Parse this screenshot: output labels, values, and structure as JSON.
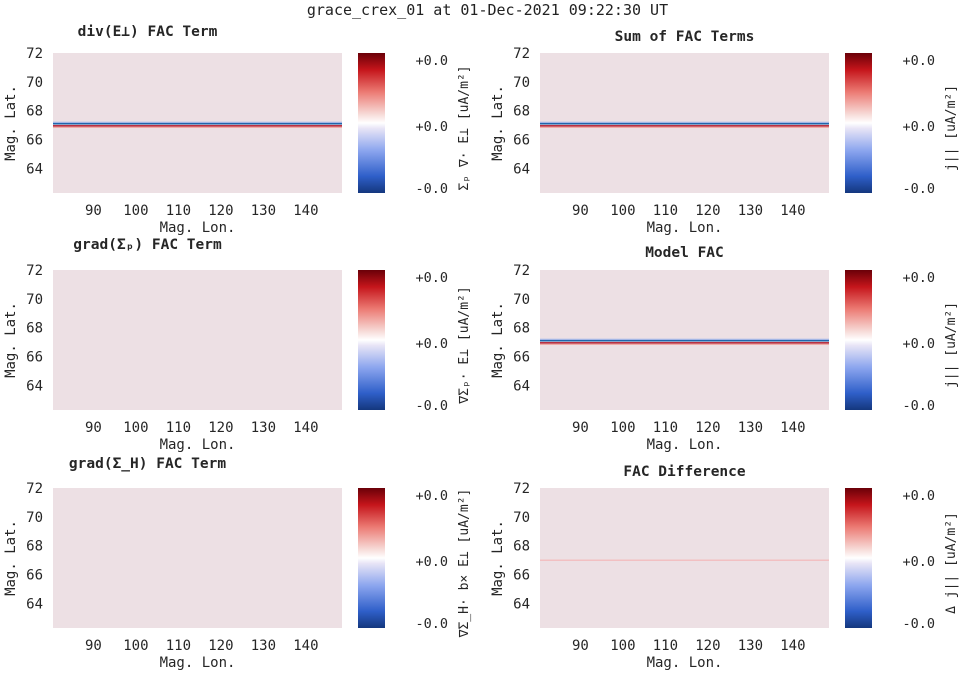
{
  "suptitle": "grace_crex_01 at 01-Dec-2021 09:22:30 UT",
  "colors": {
    "background": "#ede0e4",
    "line_red": "#b2182b",
    "line_blue": "#2166ac",
    "line_faint": "#f4b6b6"
  },
  "chart_data": [
    {
      "type": "heatmap",
      "title": "div(E⊥) FAC Term",
      "xlabel": "Mag. Lon.",
      "ylabel": "Mag. Lat.",
      "xticks": [
        90,
        100,
        110,
        120,
        130,
        140
      ],
      "yticks": [
        64,
        66,
        68,
        70,
        72
      ],
      "xlim": [
        80.5,
        148.5
      ],
      "ylim": [
        62.3,
        72
      ],
      "field": [
        {
          "lat": 67.1,
          "sign": "negative"
        },
        {
          "lat": 66.95,
          "sign": "positive"
        }
      ],
      "colorbar": {
        "label": "Σₚ ∇· E⊥ [uA/m²]",
        "ticks": [
          "+0.0",
          "+0.0",
          "-0.0"
        ]
      }
    },
    {
      "type": "heatmap",
      "title": "Sum of FAC Terms",
      "xlabel": "Mag. Lon.",
      "ylabel": "Mag. Lat.",
      "xticks": [
        90,
        100,
        110,
        120,
        130,
        140
      ],
      "yticks": [
        64,
        66,
        68,
        70,
        72
      ],
      "xlim": [
        80.5,
        148.5
      ],
      "ylim": [
        62.3,
        72
      ],
      "field": [
        {
          "lat": 67.1,
          "sign": "negative"
        },
        {
          "lat": 66.95,
          "sign": "positive"
        }
      ],
      "colorbar": {
        "label": "j|| [uA/m²]",
        "ticks": [
          "+0.0",
          "+0.0",
          "-0.0"
        ]
      }
    },
    {
      "type": "heatmap",
      "title": "grad(Σₚ) FAC Term",
      "xlabel": "Mag. Lon.",
      "ylabel": "Mag. Lat.",
      "xticks": [
        90,
        100,
        110,
        120,
        130,
        140
      ],
      "yticks": [
        64,
        66,
        68,
        70,
        72
      ],
      "xlim": [
        80.5,
        148.5
      ],
      "ylim": [
        62.3,
        72
      ],
      "field": [],
      "colorbar": {
        "label": "∇Σₚ· E⊥ [uA/m²]",
        "ticks": [
          "+0.0",
          "+0.0",
          "-0.0"
        ]
      }
    },
    {
      "type": "heatmap",
      "title": "Model FAC",
      "xlabel": "Mag. Lon.",
      "ylabel": "Mag. Lat.",
      "xticks": [
        90,
        100,
        110,
        120,
        130,
        140
      ],
      "yticks": [
        64,
        66,
        68,
        70,
        72
      ],
      "xlim": [
        80.5,
        148.5
      ],
      "ylim": [
        62.3,
        72
      ],
      "field": [
        {
          "lat": 67.1,
          "sign": "negative"
        },
        {
          "lat": 66.95,
          "sign": "positive"
        }
      ],
      "colorbar": {
        "label": "j|| [uA/m²]",
        "ticks": [
          "+0.0",
          "+0.0",
          "-0.0"
        ]
      }
    },
    {
      "type": "heatmap",
      "title": "grad(Σ_H) FAC Term",
      "xlabel": "Mag. Lon.",
      "ylabel": "Mag. Lat.",
      "xticks": [
        90,
        100,
        110,
        120,
        130,
        140
      ],
      "yticks": [
        64,
        66,
        68,
        70,
        72
      ],
      "xlim": [
        80.5,
        148.5
      ],
      "ylim": [
        62.3,
        72
      ],
      "field": [],
      "colorbar": {
        "label": "∇Σ_H· b× E⊥ [uA/m²]",
        "ticks": [
          "+0.0",
          "+0.0",
          "-0.0"
        ]
      }
    },
    {
      "type": "heatmap",
      "title": "FAC Difference",
      "xlabel": "Mag. Lon.",
      "ylabel": "Mag. Lat.",
      "xticks": [
        90,
        100,
        110,
        120,
        130,
        140
      ],
      "yticks": [
        64,
        66,
        68,
        70,
        72
      ],
      "xlim": [
        80.5,
        148.5
      ],
      "ylim": [
        62.3,
        72
      ],
      "field": [
        {
          "lat": 67.0,
          "sign": "faint"
        }
      ],
      "colorbar": {
        "label": "Δ j|| [uA/m²]",
        "ticks": [
          "+0.0",
          "+0.0",
          "-0.0"
        ]
      }
    }
  ]
}
